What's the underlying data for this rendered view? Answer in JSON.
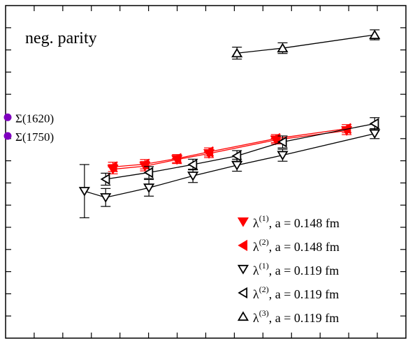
{
  "chart_data": {
    "type": "scatter",
    "title": "neg. parity",
    "xlabel": "",
    "ylabel": "",
    "grid": false,
    "legend_position": "bottom-right",
    "x_ticks_labeled": false,
    "y_ticks_labeled": false,
    "reference_markers": [
      {
        "label": "Σ(1750)",
        "y_frac": 0.608,
        "color": "#7f00bf"
      },
      {
        "label": "Σ(1620)",
        "y_frac": 0.664,
        "color": "#7f00bf"
      }
    ],
    "series": [
      {
        "name": "λ(1), a = 0.148 fm",
        "name_base": "λ",
        "name_sup": "(1)",
        "name_rest": ", a = 0.148 fm",
        "color": "#ff0000",
        "marker": "triangle-down-filled",
        "x": [
          0.268,
          0.348,
          0.428,
          0.508,
          0.675,
          0.852
        ],
        "y": [
          0.508,
          0.517,
          0.537,
          0.555,
          0.596,
          0.624
        ],
        "err": [
          0.014,
          0.014,
          0.012,
          0.012,
          0.012,
          0.012
        ]
      },
      {
        "name": "λ(2), a = 0.148 fm",
        "name_base": "λ",
        "name_sup": "(2)",
        "name_rest": ", a = 0.148 fm",
        "color": "#ff0000",
        "marker": "triangle-left-filled",
        "x": [
          0.268,
          0.348,
          0.428,
          0.508,
          0.675,
          0.852
        ],
        "y": [
          0.515,
          0.523,
          0.54,
          0.56,
          0.6,
          0.63
        ],
        "err": [
          0.014,
          0.014,
          0.012,
          0.012,
          0.012,
          0.012
        ]
      },
      {
        "name": "λ(1), a = 0.119 fm",
        "name_base": "λ",
        "name_sup": "(1)",
        "name_rest": ", a = 0.119 fm",
        "color": "#000000",
        "marker": "triangle-down-open",
        "x": [
          0.197,
          0.25,
          0.358,
          0.468,
          0.578,
          0.692,
          0.922
        ],
        "y": [
          0.442,
          0.423,
          0.452,
          0.488,
          0.52,
          0.55,
          0.615
        ],
        "err": [
          0.08,
          0.027,
          0.025,
          0.02,
          0.018,
          0.018,
          0.015
        ]
      },
      {
        "name": "λ(2), a = 0.119 fm",
        "name_base": "λ",
        "name_sup": "(2)",
        "name_rest": ", a = 0.119 fm",
        "color": "#000000",
        "marker": "triangle-left-open",
        "x": [
          0.25,
          0.358,
          0.468,
          0.578,
          0.692,
          0.922
        ],
        "y": [
          0.478,
          0.498,
          0.522,
          0.548,
          0.59,
          0.645
        ],
        "err": [
          0.018,
          0.018,
          0.016,
          0.016,
          0.018,
          0.018
        ]
      },
      {
        "name": "λ(3), a = 0.119 fm",
        "name_base": "λ",
        "name_sup": "(3)",
        "name_rest": ", a = 0.119 fm",
        "color": "#000000",
        "marker": "triangle-up-open",
        "x": [
          0.578,
          0.692,
          0.922
        ],
        "y": [
          0.857,
          0.872,
          0.912
        ],
        "err": [
          0.018,
          0.016,
          0.015
        ]
      }
    ]
  }
}
